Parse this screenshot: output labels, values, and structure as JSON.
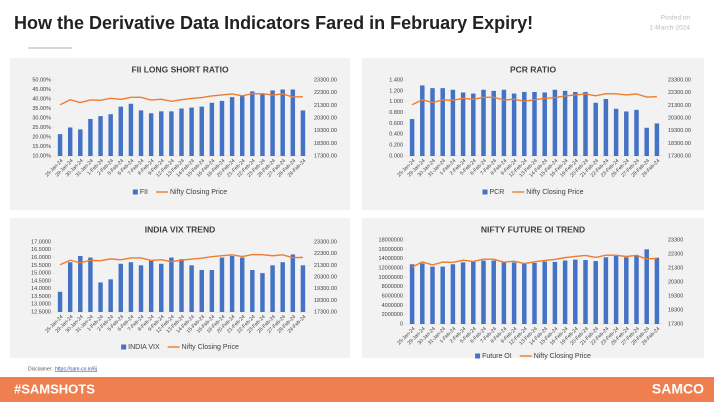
{
  "header": {
    "title": "How the Derivative Data Indicators Fared in February Expiry!",
    "posted": "Posted on",
    "date": "1-March-2024"
  },
  "disclaimer": {
    "label": "Disclaimer:",
    "link": "https://sam-co.in/6j"
  },
  "footer": {
    "hashtag": "#SAMSHOTS",
    "brand": "SAMCO"
  },
  "chart_data": [
    {
      "type": "combo",
      "title": "FII LONG SHORT RATIO",
      "categories": [
        "25-Jan-24",
        "29-Jan-24",
        "30-Jan-24",
        "31-Jan-24",
        "1-Feb-24",
        "2-Feb-24",
        "5-Feb-24",
        "6-Feb-24",
        "7-Feb-24",
        "8-Feb-24",
        "9-Feb-24",
        "12-Feb-24",
        "13-Feb-24",
        "14-Feb-24",
        "15-Feb-24",
        "16-Feb-24",
        "19-Feb-24",
        "20-Feb-24",
        "21-Feb-24",
        "22-Feb-24",
        "23-Feb-24",
        "26-Feb-24",
        "27-Feb-24",
        "28-Feb-24",
        "29-Feb-24"
      ],
      "series": [
        {
          "name": "FII",
          "type": "bar",
          "color": "#4472c4",
          "values": [
            21.5,
            25,
            24,
            29.5,
            31,
            32,
            36,
            37.5,
            34,
            32.5,
            33.5,
            33.5,
            35,
            35.5,
            36,
            38,
            39,
            41,
            42,
            44,
            43,
            44.5,
            45,
            45,
            34
          ]
        },
        {
          "name": "Nifty Closing Price",
          "type": "line",
          "axis": "y2",
          "color": "#ed7d31",
          "values": [
            21350,
            21740,
            21520,
            21725,
            21697,
            21853,
            21771,
            21930,
            21931,
            21718,
            21783,
            21616,
            21743,
            21840,
            21911,
            22041,
            22122,
            22197,
            22055,
            22218,
            22213,
            22122,
            22198,
            21952,
            21983
          ]
        }
      ],
      "ylim": [
        10,
        50
      ],
      "yticks": [
        {
          "value": 10,
          "label": "10.00%"
        },
        {
          "value": 15,
          "label": "15.00%"
        },
        {
          "value": 20,
          "label": "20.00%"
        },
        {
          "value": 25,
          "label": "25.00%"
        },
        {
          "value": 30,
          "label": "30.00%"
        },
        {
          "value": 35,
          "label": "35.00%"
        },
        {
          "value": 40,
          "label": "40.00%"
        },
        {
          "value": 45,
          "label": "45.00%"
        },
        {
          "value": 50,
          "label": "50.00%"
        }
      ],
      "y2lim": [
        17300,
        23300
      ],
      "y2ticks": [
        {
          "value": 17300,
          "label": "17300.00"
        },
        {
          "value": 18300,
          "label": "18300.00"
        },
        {
          "value": 19300,
          "label": "19300.00"
        },
        {
          "value": 20300,
          "label": "20300.00"
        },
        {
          "value": 21300,
          "label": "21300.00"
        },
        {
          "value": 22300,
          "label": "22300.00"
        },
        {
          "value": 23300,
          "label": "23300.00"
        }
      ]
    },
    {
      "type": "combo",
      "title": "PCR RATIO",
      "categories": [
        "25-Jan-24",
        "29-Jan-24",
        "30-Jan-24",
        "31-Jan-24",
        "1-Feb-24",
        "2-Feb-24",
        "5-Feb-24",
        "6-Feb-24",
        "7-Feb-24",
        "8-Feb-24",
        "9-Feb-24",
        "12-Feb-24",
        "13-Feb-24",
        "14-Feb-24",
        "15-Feb-24",
        "16-Feb-24",
        "19-Feb-24",
        "20-Feb-24",
        "21-Feb-24",
        "22-Feb-24",
        "23-Feb-24",
        "26-Feb-24",
        "27-Feb-24",
        "28-Feb-24",
        "29-Feb-24"
      ],
      "series": [
        {
          "name": "PCR",
          "type": "bar",
          "color": "#4472c4",
          "values": [
            0.68,
            1.3,
            1.25,
            1.25,
            1.22,
            1.17,
            1.15,
            1.22,
            1.2,
            1.22,
            1.15,
            1.18,
            1.18,
            1.17,
            1.22,
            1.2,
            1.18,
            1.18,
            0.98,
            1.05,
            0.87,
            0.82,
            0.85,
            0.52,
            0.6
          ]
        },
        {
          "name": "Nifty Closing Price",
          "type": "line",
          "axis": "y2",
          "color": "#ed7d31",
          "values": [
            21350,
            21740,
            21520,
            21725,
            21697,
            21853,
            21771,
            21930,
            21931,
            21718,
            21783,
            21616,
            21743,
            21840,
            21911,
            22041,
            22122,
            22197,
            22055,
            22218,
            22213,
            22122,
            22198,
            21952,
            21983
          ]
        }
      ],
      "ylim": [
        0,
        1.4
      ],
      "yticks": [
        {
          "value": 0,
          "label": "0.000"
        },
        {
          "value": 0.2,
          "label": "0.200"
        },
        {
          "value": 0.4,
          "label": "0.400"
        },
        {
          "value": 0.6,
          "label": "0.600"
        },
        {
          "value": 0.8,
          "label": "0.800"
        },
        {
          "value": 1,
          "label": "1.000"
        },
        {
          "value": 1.2,
          "label": "1.200"
        },
        {
          "value": 1.4,
          "label": "1.400"
        }
      ],
      "y2lim": [
        17300,
        23300
      ],
      "y2ticks": [
        {
          "value": 17300,
          "label": "17300.00"
        },
        {
          "value": 18300,
          "label": "18300.00"
        },
        {
          "value": 19300,
          "label": "19300.00"
        },
        {
          "value": 20300,
          "label": "20300.00"
        },
        {
          "value": 21300,
          "label": "21300.00"
        },
        {
          "value": 22300,
          "label": "22300.00"
        },
        {
          "value": 23300,
          "label": "23300.00"
        }
      ]
    },
    {
      "type": "combo",
      "title": "INDIA VIX TREND",
      "categories": [
        "25-Jan-24",
        "29-Jan-24",
        "30-Jan-24",
        "31-Jan-24",
        "1-Feb-24",
        "2-Feb-24",
        "5-Feb-24",
        "6-Feb-24",
        "7-Feb-24",
        "8-Feb-24",
        "9-Feb-24",
        "12-Feb-24",
        "13-Feb-24",
        "14-Feb-24",
        "15-Feb-24",
        "16-Feb-24",
        "19-Feb-24",
        "20-Feb-24",
        "21-Feb-24",
        "22-Feb-24",
        "23-Feb-24",
        "26-Feb-24",
        "27-Feb-24",
        "28-Feb-24",
        "29-Feb-24"
      ],
      "series": [
        {
          "name": "INDIA VIX",
          "type": "bar",
          "color": "#4472c4",
          "values": [
            13.8,
            15.7,
            16.1,
            16,
            14.4,
            14.6,
            15.6,
            15.7,
            15.5,
            15.8,
            15.6,
            16,
            15.9,
            15.5,
            15.2,
            15.2,
            16,
            16.1,
            16,
            15.2,
            15,
            15.5,
            15.7,
            16.2,
            15.5
          ]
        },
        {
          "name": "Nifty Closing Price",
          "type": "line",
          "axis": "y2",
          "color": "#ed7d31",
          "values": [
            21350,
            21740,
            21520,
            21725,
            21697,
            21853,
            21771,
            21930,
            21931,
            21718,
            21783,
            21616,
            21743,
            21840,
            21911,
            22041,
            22122,
            22197,
            22055,
            22218,
            22213,
            22122,
            22198,
            21952,
            21983
          ]
        }
      ],
      "ylim": [
        12.5,
        17
      ],
      "yticks": [
        {
          "value": 12.5,
          "label": "12.5000"
        },
        {
          "value": 13,
          "label": "13.0000"
        },
        {
          "value": 13.5,
          "label": "13.5000"
        },
        {
          "value": 14,
          "label": "14.0000"
        },
        {
          "value": 14.5,
          "label": "14.5000"
        },
        {
          "value": 15,
          "label": "15.0000"
        },
        {
          "value": 15.5,
          "label": "15.5000"
        },
        {
          "value": 16,
          "label": "16.0000"
        },
        {
          "value": 16.5,
          "label": "16.5000"
        },
        {
          "value": 17,
          "label": "17.0000"
        }
      ],
      "y2lim": [
        17300,
        23300
      ],
      "y2ticks": [
        {
          "value": 17300,
          "label": "17300.00"
        },
        {
          "value": 18300,
          "label": "18300.00"
        },
        {
          "value": 19300,
          "label": "19300.00"
        },
        {
          "value": 20300,
          "label": "20300.00"
        },
        {
          "value": 21300,
          "label": "21300.00"
        },
        {
          "value": 22300,
          "label": "22300.00"
        },
        {
          "value": 23300,
          "label": "23300.00"
        }
      ]
    },
    {
      "type": "combo",
      "title": "NIFTY FUTURE OI TREND",
      "categories": [
        "25-Jan-24",
        "29-Jan-24",
        "30-Jan-24",
        "31-Jan-24",
        "1-Feb-24",
        "2-Feb-24",
        "5-Feb-24",
        "6-Feb-24",
        "7-Feb-24",
        "8-Feb-24",
        "9-Feb-24",
        "12-Feb-24",
        "13-Feb-24",
        "14-Feb-24",
        "15-Feb-24",
        "16-Feb-24",
        "19-Feb-24",
        "20-Feb-24",
        "21-Feb-24",
        "22-Feb-24",
        "23-Feb-24",
        "26-Feb-24",
        "27-Feb-24",
        "28-Feb-24",
        "29-Feb-24"
      ],
      "series": [
        {
          "name": "Future OI",
          "type": "bar",
          "color": "#4472c4",
          "values": [
            12800000,
            13000000,
            12300000,
            12300000,
            12800000,
            13200000,
            13500000,
            13600000,
            13600000,
            13200000,
            13200000,
            13000000,
            13100000,
            13400000,
            13300000,
            13600000,
            13800000,
            13700000,
            13500000,
            14300000,
            14600000,
            14300000,
            14800000,
            16000000,
            14200000
          ]
        },
        {
          "name": "Nifty Closing Price",
          "type": "line",
          "axis": "y2",
          "color": "#ed7d31",
          "values": [
            21350,
            21740,
            21520,
            21725,
            21697,
            21853,
            21771,
            21930,
            21931,
            21718,
            21783,
            21616,
            21743,
            21840,
            21911,
            22041,
            22122,
            22197,
            22055,
            22218,
            22213,
            22122,
            22198,
            21952,
            21983
          ]
        }
      ],
      "ylim": [
        0,
        18000000
      ],
      "yticks": [
        0,
        2000000,
        4000000,
        6000000,
        8000000,
        10000000,
        12000000,
        14000000,
        16000000,
        18000000
      ],
      "y2lim": [
        17300,
        23300
      ],
      "y2ticks": [
        17300,
        18300,
        19300,
        20300,
        21300,
        22300,
        23300
      ]
    }
  ]
}
